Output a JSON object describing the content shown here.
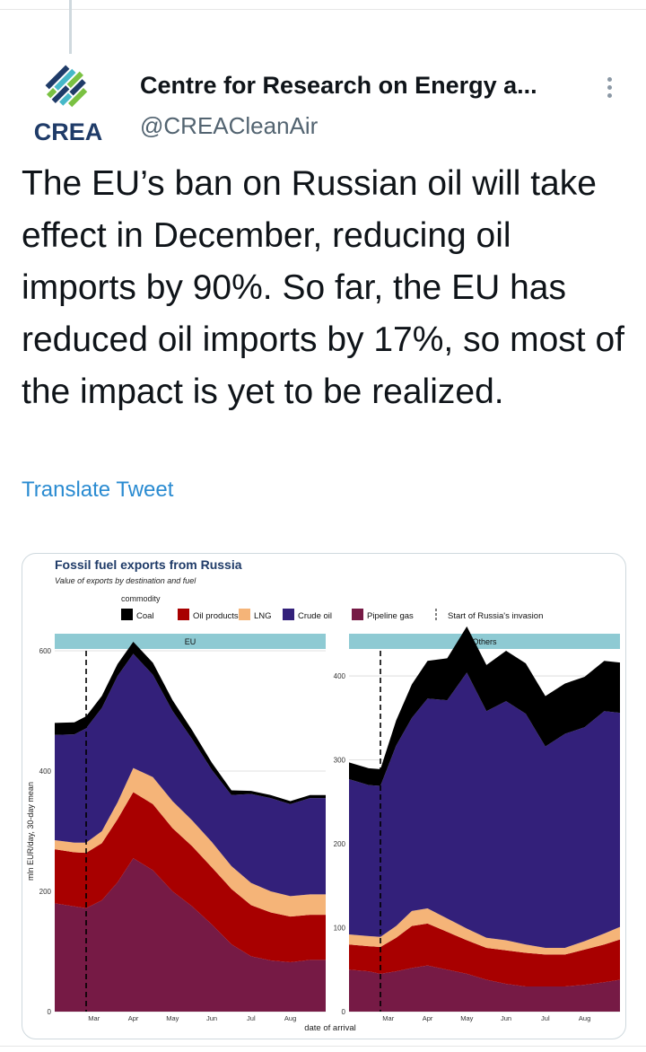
{
  "tweet": {
    "author_name": "Centre for Research on Energy a...",
    "handle": "@CREACleanAir",
    "avatar_text": "CREA",
    "text": "The EU’s ban on Russian oil will take effect in December, reducing oil imports by 90%. So far, the EU has reduced oil imports by 17%, so most of the impact is yet to be realized.",
    "translate_label": "Translate Tweet"
  },
  "colors": {
    "coal": "#000000",
    "oil_products": "#a80000",
    "lng": "#f5b478",
    "crude_oil": "#33207a",
    "pipeline_gas": "#761a45",
    "facet_strip": "#8ecad3",
    "link": "#2a8bd1"
  },
  "chart_data": {
    "type": "area",
    "stacked": true,
    "title": "Fossil fuel exports from Russia",
    "subtitle": "Value of exports by destination and fuel",
    "xlabel": "date of arrival",
    "ylabel": "mln EUR/day, 30-day mean",
    "legend_title": "commodity",
    "legend_placement": "top",
    "legend": [
      "Coal",
      "Oil products",
      "LNG",
      "Crude oil",
      "Pipeline gas"
    ],
    "vline_label": "Start of Russia's invasion",
    "x_ticks": [
      "Mar",
      "Apr",
      "May",
      "Jun",
      "Jul",
      "Aug"
    ],
    "x_tick_positions": [
      1.0,
      2.0,
      3.0,
      4.0,
      5.0,
      6.0
    ],
    "vline_x": 0.8,
    "xlim": [
      0.0,
      6.9
    ],
    "x": [
      0.0,
      0.5,
      0.8,
      1.2,
      1.6,
      2.0,
      2.5,
      3.0,
      3.5,
      4.0,
      4.5,
      5.0,
      5.5,
      6.0,
      6.5,
      6.9
    ],
    "panels": [
      {
        "facet": "EU",
        "ylim": [
          0,
          600
        ],
        "y_ticks": [
          0,
          200,
          400,
          600
        ],
        "series": [
          {
            "name": "Pipeline gas",
            "values": [
              180,
              175,
              172,
              185,
              215,
              255,
              235,
              200,
              175,
              145,
              112,
              92,
              85,
              82,
              86,
              86
            ]
          },
          {
            "name": "Oil products",
            "values": [
              90,
              90,
              92,
              95,
              105,
              110,
              110,
              105,
              100,
              95,
              92,
              85,
              80,
              76,
              75,
              75
            ]
          },
          {
            "name": "LNG",
            "values": [
              15,
              16,
              17,
              20,
              28,
              40,
              45,
              45,
              43,
              42,
              38,
              37,
              35,
              34,
              34,
              34
            ]
          },
          {
            "name": "Crude oil",
            "values": [
              175,
              180,
              190,
              205,
              210,
              190,
              170,
              150,
              135,
              120,
              118,
              148,
              155,
              153,
              160,
              160
            ]
          },
          {
            "name": "Coal",
            "values": [
              20,
              20,
              20,
              20,
              20,
              20,
              20,
              18,
              15,
              12,
              8,
              5,
              5,
              5,
              5,
              5
            ]
          }
        ]
      },
      {
        "facet": "Others",
        "ylim": [
          0,
          430
        ],
        "y_ticks": [
          0,
          100,
          200,
          300,
          400
        ],
        "series": [
          {
            "name": "Pipeline gas",
            "values": [
              50,
              48,
              45,
              48,
              52,
              55,
              50,
              45,
              38,
              33,
              30,
              30,
              30,
              32,
              35,
              38
            ]
          },
          {
            "name": "Oil products",
            "values": [
              30,
              30,
              32,
              40,
              50,
              50,
              45,
              40,
              38,
              40,
              40,
              38,
              38,
              42,
              45,
              48
            ]
          },
          {
            "name": "LNG",
            "values": [
              12,
              12,
              12,
              14,
              18,
              18,
              16,
              14,
              12,
              12,
              10,
              8,
              8,
              10,
              13,
              15
            ]
          },
          {
            "name": "Crude oil",
            "values": [
              185,
              180,
              180,
              215,
              230,
              250,
              260,
              305,
              270,
              285,
              275,
              240,
              255,
              255,
              265,
              255
            ]
          },
          {
            "name": "Coal",
            "values": [
              20,
              20,
              20,
              30,
              40,
              45,
              50,
              55,
              55,
              60,
              60,
              60,
              60,
              60,
              60,
              60
            ]
          }
        ]
      }
    ]
  }
}
